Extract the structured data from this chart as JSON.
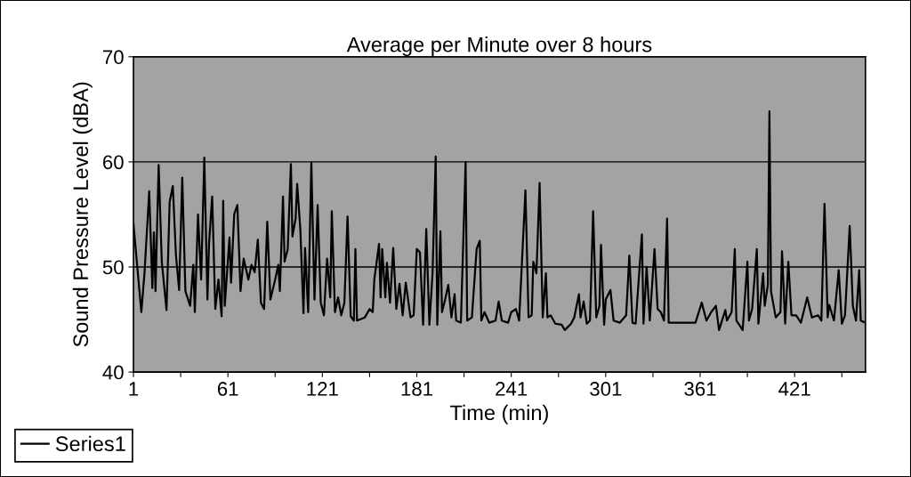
{
  "chart_data": {
    "type": "line",
    "title": "Average per Minute over 8 hours",
    "xlabel": "Time (min)",
    "ylabel": "Sound Pressure Level (dBA)",
    "x": [
      1,
      6,
      8,
      11,
      13,
      14,
      15,
      17,
      19,
      22,
      24,
      26,
      28,
      30,
      32,
      34,
      37,
      39,
      40,
      42,
      44,
      46,
      48,
      49,
      51,
      53,
      55,
      57,
      58,
      59,
      62,
      63,
      65,
      67,
      69,
      71,
      74,
      76,
      78,
      80,
      82,
      84,
      86,
      88,
      91,
      93,
      94,
      96,
      97,
      99,
      101,
      102,
      104,
      105,
      107,
      109,
      110,
      112,
      114,
      116,
      118,
      120,
      122,
      124,
      126,
      127,
      129,
      131,
      133,
      135,
      137,
      139,
      141,
      142,
      143,
      148,
      151,
      153,
      154,
      157,
      158,
      159,
      161,
      162,
      164,
      166,
      168,
      170,
      172,
      174,
      177,
      179,
      181,
      183,
      185,
      187,
      189,
      191,
      193,
      194,
      196,
      197,
      199,
      201,
      203,
      205,
      206,
      209,
      212,
      213,
      216,
      219,
      221,
      222,
      224,
      227,
      231,
      233,
      235,
      239,
      241,
      244,
      246,
      250,
      252,
      254,
      255,
      257,
      259,
      261,
      263,
      264,
      266,
      269,
      273,
      275,
      279,
      281,
      284,
      285,
      287,
      289,
      291,
      293,
      295,
      297,
      298,
      300,
      301,
      304,
      306,
      310,
      314,
      316,
      318,
      320,
      324,
      325,
      327,
      329,
      332,
      334,
      336,
      338,
      340,
      341,
      349,
      358,
      362,
      365,
      368,
      371,
      373,
      377,
      378,
      381,
      383,
      384,
      388,
      391,
      392,
      394,
      397,
      398,
      401,
      402,
      404,
      405,
      406,
      409,
      412,
      413,
      415,
      417,
      419,
      422,
      425,
      429,
      432,
      436,
      438,
      440,
      442,
      443,
      446,
      449,
      451,
      453,
      456,
      458,
      460,
      462,
      463,
      466
    ],
    "series": [
      {
        "name": "Series1",
        "color": "#000000",
        "values": [
          54.1,
          45.7,
          49.4,
          57.2,
          48.0,
          53.3,
          47.7,
          59.7,
          50.5,
          45.9,
          56.2,
          57.7,
          51.1,
          47.8,
          58.5,
          47.7,
          46.3,
          50.2,
          45.7,
          55.0,
          48.8,
          60.4,
          46.9,
          52.2,
          56.7,
          46.0,
          48.8,
          45.3,
          56.3,
          46.3,
          52.8,
          48.5,
          55.0,
          55.9,
          47.7,
          50.8,
          48.8,
          50.2,
          49.5,
          52.6,
          46.6,
          46.0,
          54.3,
          46.9,
          48.8,
          50.2,
          47.7,
          56.7,
          50.5,
          51.7,
          59.8,
          52.9,
          54.6,
          57.9,
          53.6,
          45.6,
          51.8,
          45.7,
          59.9,
          46.9,
          55.9,
          46.6,
          45.4,
          50.8,
          47.1,
          55.3,
          45.7,
          47.1,
          45.4,
          46.6,
          54.8,
          45.3,
          44.9,
          51.7,
          44.9,
          45.2,
          46.0,
          45.7,
          48.8,
          52.2,
          47.1,
          51.7,
          47.1,
          50.4,
          46.6,
          51.8,
          46.0,
          48.4,
          45.4,
          48.5,
          45.2,
          45.4,
          51.7,
          51.4,
          44.5,
          53.6,
          44.5,
          49.4,
          60.5,
          44.5,
          53.4,
          45.7,
          46.9,
          48.3,
          45.2,
          47.4,
          44.9,
          44.7,
          60.0,
          44.9,
          45.2,
          51.7,
          52.5,
          44.9,
          45.7,
          44.7,
          44.9,
          46.7,
          44.9,
          44.7,
          45.7,
          46.0,
          44.9,
          57.3,
          45.2,
          45.4,
          50.5,
          49.4,
          58.0,
          45.2,
          49.4,
          45.2,
          45.4,
          44.6,
          44.5,
          44.0,
          44.6,
          45.2,
          47.4,
          45.2,
          46.7,
          44.6,
          44.9,
          55.3,
          45.2,
          46.3,
          52.1,
          44.5,
          46.9,
          47.8,
          44.9,
          44.7,
          45.4,
          51.1,
          44.7,
          44.6,
          53.1,
          44.6,
          50.0,
          44.9,
          51.7,
          46.0,
          45.7,
          44.9,
          54.6,
          44.7,
          44.7,
          44.7,
          46.6,
          44.9,
          45.7,
          46.3,
          44.0,
          45.9,
          44.9,
          45.7,
          51.7,
          44.9,
          44.0,
          50.5,
          44.9,
          46.0,
          51.7,
          44.6,
          49.4,
          46.3,
          48.3,
          64.8,
          47.7,
          45.2,
          45.7,
          51.5,
          44.6,
          50.5,
          45.4,
          45.4,
          44.7,
          47.1,
          45.2,
          45.4,
          44.9,
          56.0,
          45.2,
          46.4,
          44.9,
          49.7,
          44.6,
          45.4,
          53.9,
          46.3,
          44.9,
          49.7,
          44.9,
          44.7
        ]
      }
    ],
    "xlim": [
      1,
      466
    ],
    "ylim": [
      40,
      70
    ],
    "xticks": [
      1,
      {
        "value": 31,
        "label": null
      },
      61,
      {
        "value": 91,
        "label": null
      },
      121,
      {
        "value": 151,
        "label": null
      },
      181,
      {
        "value": 211,
        "label": null
      },
      241,
      {
        "value": 271,
        "label": null
      },
      301,
      {
        "value": 331,
        "label": null
      },
      361,
      {
        "value": 391,
        "label": null
      },
      421,
      {
        "value": 451,
        "label": null
      }
    ],
    "yticks": [
      40,
      50,
      60,
      70
    ],
    "grid": "y",
    "legend": "bottom left"
  }
}
